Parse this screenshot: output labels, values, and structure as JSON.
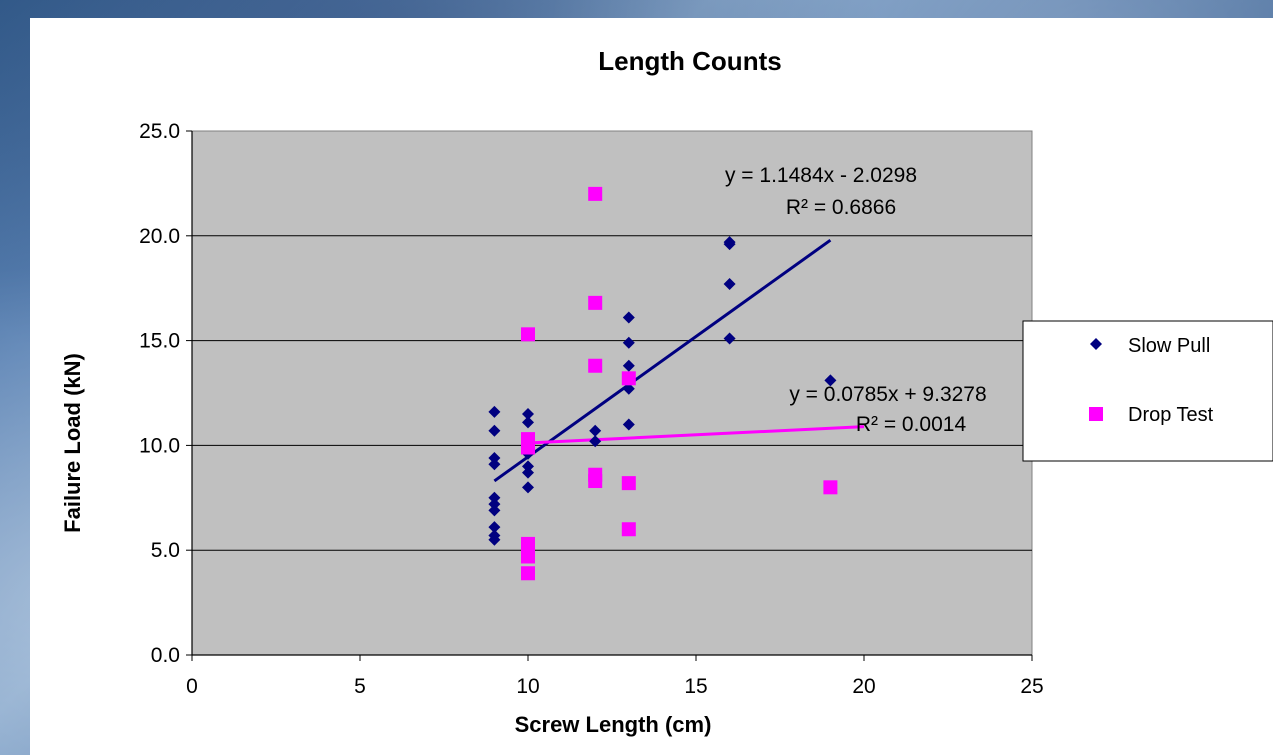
{
  "chart_data": {
    "type": "scatter",
    "title": "Length Counts",
    "xlabel": "Screw Length (cm)",
    "ylabel": "Failure Load (kN)",
    "xlim": [
      0,
      25
    ],
    "ylim": [
      0,
      25
    ],
    "x_ticks": [
      "0",
      "5",
      "10",
      "15",
      "20",
      "25"
    ],
    "y_ticks": [
      "0.0",
      "5.0",
      "10.0",
      "15.0",
      "20.0",
      "25.0"
    ],
    "grid": "horizontal",
    "legend_position": "right",
    "plot_background": "#c0c0c0",
    "series": [
      {
        "name": "Slow Pull",
        "marker": "diamond",
        "color": "#000080",
        "points": [
          [
            9,
            11.6
          ],
          [
            9,
            10.7
          ],
          [
            9,
            9.4
          ],
          [
            9,
            9.1
          ],
          [
            9,
            7.5
          ],
          [
            9,
            7.2
          ],
          [
            9,
            6.9
          ],
          [
            9,
            6.1
          ],
          [
            9,
            5.7
          ],
          [
            9,
            5.5
          ],
          [
            10,
            11.5
          ],
          [
            10,
            11.1
          ],
          [
            10,
            10.2
          ],
          [
            10,
            9.6
          ],
          [
            10,
            9.0
          ],
          [
            10,
            8.7
          ],
          [
            10,
            8.0
          ],
          [
            12,
            10.7
          ],
          [
            12,
            10.2
          ],
          [
            13,
            16.1
          ],
          [
            13,
            14.9
          ],
          [
            13,
            13.8
          ],
          [
            13,
            13.2
          ],
          [
            13,
            12.7
          ],
          [
            13,
            11.0
          ],
          [
            16,
            19.7
          ],
          [
            16,
            19.6
          ],
          [
            16,
            17.7
          ],
          [
            16,
            15.1
          ],
          [
            19,
            13.1
          ]
        ],
        "trendline": {
          "slope": 1.1484,
          "intercept": -2.0298,
          "x_range": [
            9,
            19
          ],
          "equation": "y = 1.1484x - 2.0298",
          "r2": "R² = 0.6866",
          "color": "#000080"
        }
      },
      {
        "name": "Drop Test",
        "marker": "square",
        "color": "#ff00ff",
        "points": [
          [
            10,
            15.3
          ],
          [
            10,
            10.3
          ],
          [
            10,
            9.9
          ],
          [
            10,
            5.3
          ],
          [
            10,
            4.7
          ],
          [
            10,
            3.9
          ],
          [
            12,
            22.0
          ],
          [
            12,
            16.8
          ],
          [
            12,
            13.8
          ],
          [
            12,
            8.6
          ],
          [
            12,
            8.3
          ],
          [
            13,
            13.2
          ],
          [
            13,
            8.2
          ],
          [
            13,
            6.0
          ],
          [
            19,
            8.0
          ]
        ],
        "trendline": {
          "slope": 0.0785,
          "intercept": 9.3278,
          "x_range": [
            10,
            20
          ],
          "equation": "y = 0.0785x + 9.3278",
          "r2": "R² = 0.0014",
          "color": "#ff00ff"
        }
      }
    ]
  }
}
